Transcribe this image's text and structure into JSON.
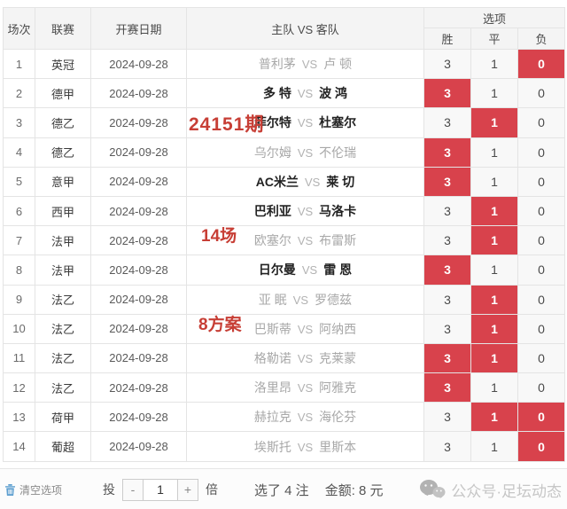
{
  "table": {
    "headers": {
      "match_no": "场次",
      "league": "联赛",
      "date": "开赛日期",
      "teams": "主队 VS 客队",
      "options": "选项",
      "win": "胜",
      "draw": "平",
      "lose": "负"
    },
    "vs_label": "VS",
    "rows": [
      {
        "no": "1",
        "league": "英冠",
        "date": "2024-09-28",
        "home": "普利茅",
        "away": "卢 顿",
        "emphasis": false,
        "win": "3",
        "draw": "1",
        "lose": "0",
        "selected": [
          "lose"
        ]
      },
      {
        "no": "2",
        "league": "德甲",
        "date": "2024-09-28",
        "home": "多 特",
        "away": "波 鸿",
        "emphasis": true,
        "win": "3",
        "draw": "1",
        "lose": "0",
        "selected": [
          "win"
        ]
      },
      {
        "no": "3",
        "league": "德乙",
        "date": "2024-09-28",
        "home": "菲尔特",
        "away": "杜塞尔",
        "emphasis": true,
        "win": "3",
        "draw": "1",
        "lose": "0",
        "selected": [
          "draw"
        ]
      },
      {
        "no": "4",
        "league": "德乙",
        "date": "2024-09-28",
        "home": "乌尔姆",
        "away": "不伦瑞",
        "emphasis": false,
        "win": "3",
        "draw": "1",
        "lose": "0",
        "selected": [
          "win"
        ]
      },
      {
        "no": "5",
        "league": "意甲",
        "date": "2024-09-28",
        "home": "AC米兰",
        "away": "莱 切",
        "emphasis": true,
        "win": "3",
        "draw": "1",
        "lose": "0",
        "selected": [
          "win"
        ]
      },
      {
        "no": "6",
        "league": "西甲",
        "date": "2024-09-28",
        "home": "巴利亚",
        "away": "马洛卡",
        "emphasis": true,
        "win": "3",
        "draw": "1",
        "lose": "0",
        "selected": [
          "draw"
        ]
      },
      {
        "no": "7",
        "league": "法甲",
        "date": "2024-09-28",
        "home": "欧塞尔",
        "away": "布雷斯",
        "emphasis": false,
        "win": "3",
        "draw": "1",
        "lose": "0",
        "selected": [
          "draw"
        ]
      },
      {
        "no": "8",
        "league": "法甲",
        "date": "2024-09-28",
        "home": "日尔曼",
        "away": "雷 恩",
        "emphasis": true,
        "win": "3",
        "draw": "1",
        "lose": "0",
        "selected": [
          "win"
        ]
      },
      {
        "no": "9",
        "league": "法乙",
        "date": "2024-09-28",
        "home": "亚 眠",
        "away": "罗德兹",
        "emphasis": false,
        "win": "3",
        "draw": "1",
        "lose": "0",
        "selected": [
          "draw"
        ]
      },
      {
        "no": "10",
        "league": "法乙",
        "date": "2024-09-28",
        "home": "巴斯蒂",
        "away": "阿纳西",
        "emphasis": false,
        "win": "3",
        "draw": "1",
        "lose": "0",
        "selected": [
          "draw"
        ]
      },
      {
        "no": "11",
        "league": "法乙",
        "date": "2024-09-28",
        "home": "格勒诺",
        "away": "克莱蒙",
        "emphasis": false,
        "win": "3",
        "draw": "1",
        "lose": "0",
        "selected": [
          "win",
          "draw"
        ]
      },
      {
        "no": "12",
        "league": "法乙",
        "date": "2024-09-28",
        "home": "洛里昂",
        "away": "阿雅克",
        "emphasis": false,
        "win": "3",
        "draw": "1",
        "lose": "0",
        "selected": [
          "win"
        ]
      },
      {
        "no": "13",
        "league": "荷甲",
        "date": "2024-09-28",
        "home": "赫拉克",
        "away": "海伦芬",
        "emphasis": false,
        "win": "3",
        "draw": "1",
        "lose": "0",
        "selected": [
          "draw",
          "lose"
        ]
      },
      {
        "no": "14",
        "league": "葡超",
        "date": "2024-09-28",
        "home": "埃斯托",
        "away": "里斯本",
        "emphasis": false,
        "win": "3",
        "draw": "1",
        "lose": "0",
        "selected": [
          "lose"
        ]
      }
    ]
  },
  "annotations": {
    "issue": "24151期",
    "match_count": "14场",
    "plan": "8方案"
  },
  "footer": {
    "clear_label": "清空选项",
    "stake_prefix": "投",
    "minus_label": "-",
    "multiplier_value": "1",
    "plus_label": "+",
    "stake_suffix": "倍",
    "selected_count_text": "选了 4 注",
    "amount_text": "金额:  8 元"
  },
  "watermark": {
    "text": "公众号·足坛动态"
  },
  "colors": {
    "selected_red": "#d8424c",
    "annotation_red": "#c73e35",
    "header_bg": "#f4f4f4",
    "option_cell_bg": "#f8f8f8",
    "clear_icon_blue": "#5e9fd0"
  }
}
